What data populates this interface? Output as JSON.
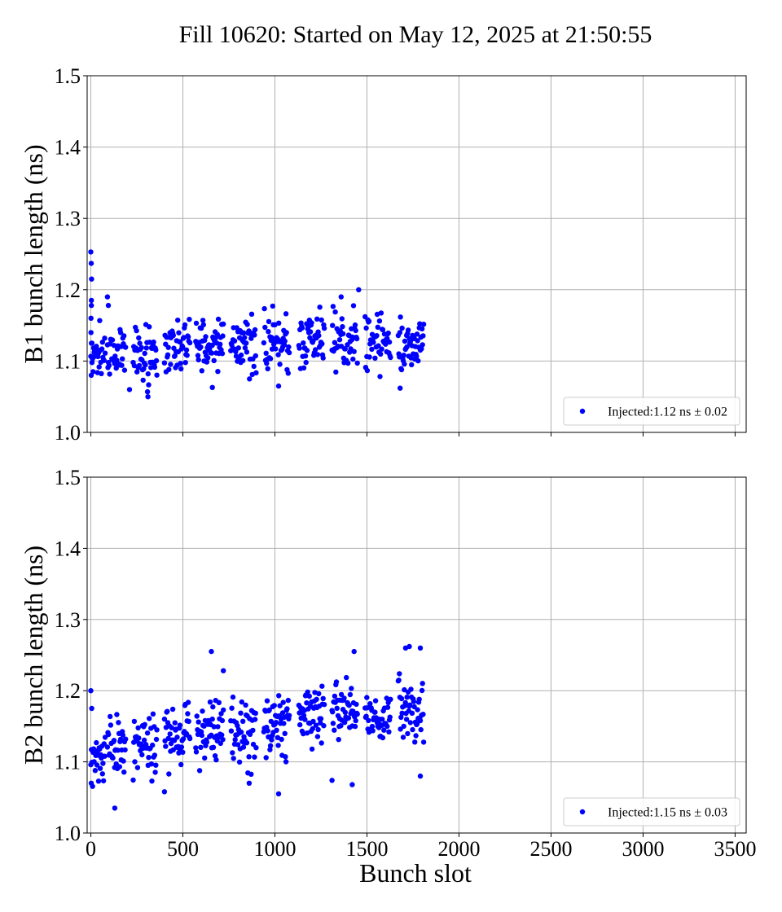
{
  "figure": {
    "title": "Fill 10620: Started on May 12, 2025 at 21:50:55",
    "xlabel": "Bunch slot"
  },
  "colors": {
    "points": "#0000ff",
    "grid": "#b0b0b0",
    "axis": "#000000"
  },
  "chart_data": [
    {
      "type": "scatter",
      "name": "B1",
      "ylabel": "B1 bunch length (ns)",
      "xlim": [
        -20,
        3560
      ],
      "ylim": [
        1.0,
        1.5
      ],
      "x_ticks": [
        0,
        500,
        1000,
        1500,
        2000,
        2500,
        3000,
        3500
      ],
      "y_ticks": [
        1.0,
        1.1,
        1.2,
        1.3,
        1.4,
        1.5
      ],
      "x_tick_labels": [
        "0",
        "500",
        "1000",
        "1500",
        "2000",
        "2500",
        "3000",
        "3500"
      ],
      "y_tick_labels": [
        "1.0",
        "1.1",
        "1.2",
        "1.3",
        "1.4",
        "1.5"
      ],
      "show_x_tick_labels": false,
      "grid": true,
      "legend": {
        "label": "Injected:1.12 ns ± 0.02",
        "position": "lower-right"
      },
      "groups": [
        {
          "x": [
            0,
            80
          ],
          "mean": 1.115,
          "spread": 0.05
        },
        {
          "x": [
            90,
            190
          ],
          "mean": 1.112,
          "spread": 0.05
        },
        {
          "x": [
            230,
            360
          ],
          "mean": 1.112,
          "spread": 0.055
        },
        {
          "x": [
            400,
            540
          ],
          "mean": 1.118,
          "spread": 0.05
        },
        {
          "x": [
            570,
            720
          ],
          "mean": 1.125,
          "spread": 0.05
        },
        {
          "x": [
            760,
            900
          ],
          "mean": 1.125,
          "spread": 0.05
        },
        {
          "x": [
            940,
            1080
          ],
          "mean": 1.122,
          "spread": 0.055
        },
        {
          "x": [
            1130,
            1270
          ],
          "mean": 1.128,
          "spread": 0.05
        },
        {
          "x": [
            1310,
            1450
          ],
          "mean": 1.125,
          "spread": 0.055
        },
        {
          "x": [
            1490,
            1630
          ],
          "mean": 1.128,
          "spread": 0.05
        },
        {
          "x": [
            1670,
            1810
          ],
          "mean": 1.125,
          "spread": 0.05
        }
      ],
      "points": [
        [
          0,
          1.253
        ],
        [
          2,
          1.237
        ],
        [
          4,
          1.215
        ],
        [
          3,
          1.185
        ],
        [
          3,
          1.178
        ],
        [
          1,
          1.16
        ],
        [
          1,
          1.14
        ],
        [
          90,
          1.19
        ],
        [
          95,
          1.178
        ],
        [
          1455,
          1.2
        ],
        [
          310,
          1.05
        ],
        [
          210,
          1.06
        ],
        [
          1020,
          1.065
        ],
        [
          1680,
          1.062
        ],
        [
          660,
          1.063
        ],
        [
          1360,
          1.19
        ],
        [
          2,
          1.08
        ],
        [
          6,
          1.098
        ]
      ]
    },
    {
      "type": "scatter",
      "name": "B2",
      "ylabel": "B2 bunch length (ns)",
      "xlim": [
        -20,
        3560
      ],
      "ylim": [
        1.0,
        1.5
      ],
      "x_ticks": [
        0,
        500,
        1000,
        1500,
        2000,
        2500,
        3000,
        3500
      ],
      "y_ticks": [
        1.0,
        1.1,
        1.2,
        1.3,
        1.4,
        1.5
      ],
      "x_tick_labels": [
        "0",
        "500",
        "1000",
        "1500",
        "2000",
        "2500",
        "3000",
        "3500"
      ],
      "y_tick_labels": [
        "1.0",
        "1.1",
        "1.2",
        "1.3",
        "1.4",
        "1.5"
      ],
      "show_x_tick_labels": true,
      "grid": true,
      "legend": {
        "label": "Injected:1.15 ns ± 0.03",
        "position": "lower-right"
      },
      "groups": [
        {
          "x": [
            0,
            80
          ],
          "mean": 1.105,
          "spread": 0.055
        },
        {
          "x": [
            90,
            190
          ],
          "mean": 1.12,
          "spread": 0.06
        },
        {
          "x": [
            230,
            360
          ],
          "mean": 1.128,
          "spread": 0.055
        },
        {
          "x": [
            400,
            540
          ],
          "mean": 1.138,
          "spread": 0.055
        },
        {
          "x": [
            570,
            720
          ],
          "mean": 1.142,
          "spread": 0.055
        },
        {
          "x": [
            760,
            900
          ],
          "mean": 1.14,
          "spread": 0.06
        },
        {
          "x": [
            940,
            1080
          ],
          "mean": 1.15,
          "spread": 0.06
        },
        {
          "x": [
            1130,
            1270
          ],
          "mean": 1.168,
          "spread": 0.05
        },
        {
          "x": [
            1310,
            1450
          ],
          "mean": 1.17,
          "spread": 0.06
        },
        {
          "x": [
            1490,
            1630
          ],
          "mean": 1.165,
          "spread": 0.055
        },
        {
          "x": [
            1670,
            1810
          ],
          "mean": 1.17,
          "spread": 0.065
        }
      ],
      "points": [
        [
          0,
          1.2
        ],
        [
          5,
          1.175
        ],
        [
          2,
          1.07
        ],
        [
          655,
          1.255
        ],
        [
          720,
          1.228
        ],
        [
          1430,
          1.255
        ],
        [
          1710,
          1.26
        ],
        [
          1730,
          1.262
        ],
        [
          1790,
          1.26
        ],
        [
          1020,
          1.055
        ],
        [
          130,
          1.035
        ],
        [
          400,
          1.058
        ],
        [
          1310,
          1.074
        ],
        [
          1420,
          1.068
        ],
        [
          1790,
          1.08
        ],
        [
          860,
          1.07
        ]
      ]
    }
  ]
}
